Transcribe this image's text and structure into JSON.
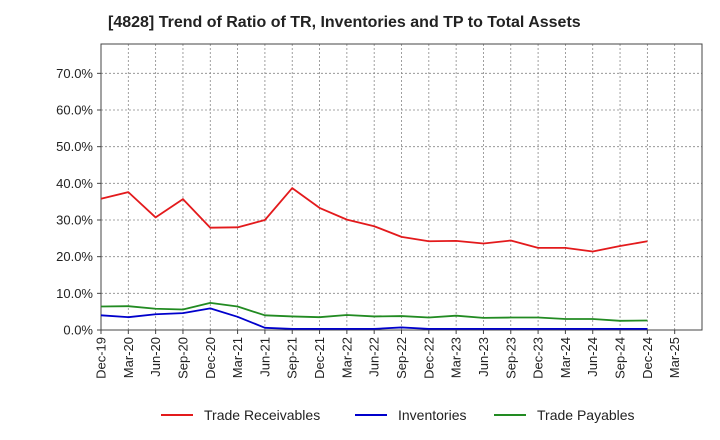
{
  "chart_data": {
    "type": "line",
    "title": "[4828]  Trend of Ratio of TR, Inventories and TP to Total Assets",
    "xlabel": "",
    "ylabel": "",
    "ylim": [
      0,
      0.78
    ],
    "yticks": [
      0,
      0.1,
      0.2,
      0.3,
      0.4,
      0.5,
      0.6,
      0.7
    ],
    "ytick_labels": [
      "0.0%",
      "10.0%",
      "20.0%",
      "30.0%",
      "40.0%",
      "50.0%",
      "60.0%",
      "70.0%"
    ],
    "xtick_labels": [
      "Dec-19",
      "Mar-20",
      "Jun-20",
      "Sep-20",
      "Dec-20",
      "Mar-21",
      "Jun-21",
      "Sep-21",
      "Dec-21",
      "Mar-22",
      "Jun-22",
      "Sep-22",
      "Dec-22",
      "Mar-23",
      "Jun-23",
      "Sep-23",
      "Dec-23",
      "Mar-24",
      "Jun-24",
      "Sep-24",
      "Dec-24",
      "Mar-25"
    ],
    "x": [
      "Dec-19",
      "Mar-20",
      "Jun-20",
      "Sep-20",
      "Dec-20",
      "Mar-21",
      "Jun-21",
      "Sep-21",
      "Dec-21",
      "Mar-22",
      "Jun-22",
      "Sep-22",
      "Dec-22",
      "Mar-23",
      "Jun-23",
      "Sep-23",
      "Dec-23",
      "Mar-24",
      "Jun-24",
      "Sep-24",
      "Dec-24"
    ],
    "grid": true,
    "legend_position": "bottom",
    "series": [
      {
        "name": "Trade Receivables",
        "color": "#e31a1c",
        "values": [
          0.358,
          0.376,
          0.307,
          0.357,
          0.279,
          0.28,
          0.3,
          0.387,
          0.333,
          0.301,
          0.283,
          0.254,
          0.242,
          0.243,
          0.236,
          0.244,
          0.224,
          0.224,
          0.214,
          0.229,
          0.242
        ]
      },
      {
        "name": "Inventories",
        "color": "#0000cc",
        "values": [
          0.04,
          0.035,
          0.043,
          0.046,
          0.059,
          0.036,
          0.006,
          0.003,
          0.003,
          0.003,
          0.003,
          0.007,
          0.003,
          0.003,
          0.003,
          0.003,
          0.003,
          0.003,
          0.003,
          0.003,
          0.003
        ]
      },
      {
        "name": "Trade Payables",
        "color": "#228b22",
        "values": [
          0.064,
          0.065,
          0.058,
          0.056,
          0.074,
          0.064,
          0.04,
          0.037,
          0.035,
          0.041,
          0.037,
          0.038,
          0.034,
          0.039,
          0.033,
          0.034,
          0.034,
          0.03,
          0.03,
          0.025,
          0.026
        ]
      }
    ]
  }
}
